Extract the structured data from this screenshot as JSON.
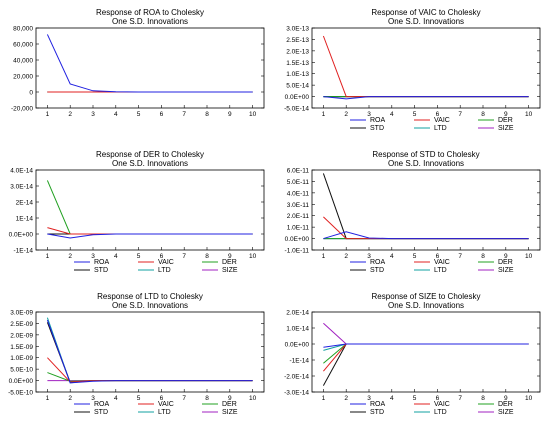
{
  "figure": {
    "background": "#ffffff"
  },
  "series_meta": [
    {
      "name": "ROA",
      "color": "#2020e0"
    },
    {
      "name": "VAIC",
      "color": "#e02020"
    },
    {
      "name": "DER",
      "color": "#20a020"
    },
    {
      "name": "STD",
      "color": "#101010"
    },
    {
      "name": "LTD",
      "color": "#10a0a0"
    },
    {
      "name": "SIZE",
      "color": "#a020c0"
    }
  ],
  "chart_data": [
    {
      "type": "line",
      "title": "Response of ROA to Cholesky",
      "subtitle": "One S.D. Innovations",
      "x": [
        1,
        2,
        3,
        4,
        5,
        6,
        7,
        8,
        9,
        10
      ],
      "ylim": [
        -20000,
        80000
      ],
      "yticks": [
        -20000,
        0,
        20000,
        40000,
        60000,
        80000
      ],
      "ytick_labels": [
        "-20,000",
        "0",
        "20,000",
        "40,000",
        "60,000",
        "80,000"
      ],
      "legend": false,
      "grid": false,
      "series": [
        {
          "name": "ROA",
          "values": [
            72000,
            10000,
            1500,
            300,
            0,
            0,
            0,
            0,
            0,
            0
          ]
        },
        {
          "name": "VAIC",
          "values": [
            0,
            0,
            0,
            0,
            0,
            0,
            0,
            0,
            0,
            0
          ]
        },
        {
          "name": "DER",
          "values": [
            0,
            0,
            0,
            0,
            0,
            0,
            0,
            0,
            0,
            0
          ]
        },
        {
          "name": "STD",
          "values": [
            0,
            0,
            0,
            0,
            0,
            0,
            0,
            0,
            0,
            0
          ]
        },
        {
          "name": "LTD",
          "values": [
            0,
            0,
            0,
            0,
            0,
            0,
            0,
            0,
            0,
            0
          ]
        },
        {
          "name": "SIZE",
          "values": [
            0,
            0,
            0,
            0,
            0,
            0,
            0,
            0,
            0,
            0
          ]
        }
      ]
    },
    {
      "type": "line",
      "title": "Response of VAIC to Cholesky",
      "subtitle": "One S.D. Innovations",
      "x": [
        1,
        2,
        3,
        4,
        5,
        6,
        7,
        8,
        9,
        10
      ],
      "ylim": [
        -5e-14,
        3e-13
      ],
      "yticks": [
        -5e-14,
        0,
        5e-14,
        1e-13,
        1.5e-13,
        2e-13,
        2.5e-13,
        3e-13
      ],
      "ytick_labels": [
        "-5.0E-14",
        "0.0E+00",
        "5.0E-14",
        "1.0E-13",
        "1.5E-13",
        "2.0E-13",
        "2.5E-13",
        "3.0E-13"
      ],
      "legend": true,
      "legend_position": "bottom",
      "grid": false,
      "series": [
        {
          "name": "ROA",
          "values": [
            0,
            -1e-14,
            0,
            0,
            0,
            0,
            0,
            0,
            0,
            0
          ]
        },
        {
          "name": "VAIC",
          "values": [
            2.65e-13,
            0,
            0,
            0,
            0,
            0,
            0,
            0,
            0,
            0
          ]
        },
        {
          "name": "DER",
          "values": [
            0,
            0,
            0,
            0,
            0,
            0,
            0,
            0,
            0,
            0
          ]
        },
        {
          "name": "STD",
          "values": [
            0,
            0,
            0,
            0,
            0,
            0,
            0,
            0,
            0,
            0
          ]
        },
        {
          "name": "LTD",
          "values": [
            0,
            0,
            0,
            0,
            0,
            0,
            0,
            0,
            0,
            0
          ]
        },
        {
          "name": "SIZE",
          "values": [
            0,
            0,
            0,
            0,
            0,
            0,
            0,
            0,
            0,
            0
          ]
        }
      ]
    },
    {
      "type": "line",
      "title": "Response of DER to Cholesky",
      "subtitle": "One S.D. Innovations",
      "x": [
        1,
        2,
        3,
        4,
        5,
        6,
        7,
        8,
        9,
        10
      ],
      "ylim": [
        -1e-14,
        4e-14
      ],
      "yticks": [
        -1e-14,
        0,
        1e-14,
        2e-14,
        3e-14,
        4e-14
      ],
      "ytick_labels": [
        "-1E-14",
        "0.0E+00",
        "1E-14",
        "2E-14",
        "3.0E-14",
        "4.0E-14"
      ],
      "legend": true,
      "legend_position": "bottom",
      "grid": false,
      "series": [
        {
          "name": "ROA",
          "values": [
            0,
            -2.5e-15,
            -5e-16,
            0,
            0,
            0,
            0,
            0,
            0,
            0
          ]
        },
        {
          "name": "VAIC",
          "values": [
            4e-15,
            0,
            0,
            0,
            0,
            0,
            0,
            0,
            0,
            0
          ]
        },
        {
          "name": "DER",
          "values": [
            3.35e-14,
            0,
            0,
            0,
            0,
            0,
            0,
            0,
            0,
            0
          ]
        },
        {
          "name": "STD",
          "values": [
            0,
            0,
            0,
            0,
            0,
            0,
            0,
            0,
            0,
            0
          ]
        },
        {
          "name": "LTD",
          "values": [
            0,
            0,
            0,
            0,
            0,
            0,
            0,
            0,
            0,
            0
          ]
        },
        {
          "name": "SIZE",
          "values": [
            0,
            0,
            0,
            0,
            0,
            0,
            0,
            0,
            0,
            0
          ]
        }
      ]
    },
    {
      "type": "line",
      "title": "Response of STD to Cholesky",
      "subtitle": "One S.D. Innovations",
      "x": [
        1,
        2,
        3,
        4,
        5,
        6,
        7,
        8,
        9,
        10
      ],
      "ylim": [
        -1e-11,
        6e-11
      ],
      "yticks": [
        -1e-11,
        0,
        1e-11,
        2e-11,
        3e-11,
        4e-11,
        5e-11,
        6e-11
      ],
      "ytick_labels": [
        "-1.0E-11",
        "0.0E+00",
        "1.0E-11",
        "2.0E-11",
        "3.0E-11",
        "4.0E-11",
        "5.0E-11",
        "6.0E-11"
      ],
      "legend": true,
      "legend_position": "bottom",
      "grid": false,
      "series": [
        {
          "name": "ROA",
          "values": [
            0,
            6e-12,
            5e-13,
            0,
            0,
            0,
            0,
            0,
            0,
            0
          ]
        },
        {
          "name": "VAIC",
          "values": [
            1.9e-11,
            0,
            0,
            0,
            0,
            0,
            0,
            0,
            0,
            0
          ]
        },
        {
          "name": "DER",
          "values": [
            0,
            0,
            0,
            0,
            0,
            0,
            0,
            0,
            0,
            0
          ]
        },
        {
          "name": "STD",
          "values": [
            5.7e-11,
            0,
            0,
            0,
            0,
            0,
            0,
            0,
            0,
            0
          ]
        },
        {
          "name": "LTD",
          "values": [
            0,
            0,
            0,
            0,
            0,
            0,
            0,
            0,
            0,
            0
          ]
        },
        {
          "name": "SIZE",
          "values": [
            0,
            0,
            0,
            0,
            0,
            0,
            0,
            0,
            0,
            0
          ]
        }
      ]
    },
    {
      "type": "line",
      "title": "Response of LTD to Cholesky",
      "subtitle": "One S.D. Innovations",
      "x": [
        1,
        2,
        3,
        4,
        5,
        6,
        7,
        8,
        9,
        10
      ],
      "ylim": [
        -5e-10,
        3e-09
      ],
      "yticks": [
        -5e-10,
        0,
        5e-10,
        1e-09,
        1.5e-09,
        2e-09,
        2.5e-09,
        3e-09
      ],
      "ytick_labels": [
        "-5.0E-10",
        "0.0E+00",
        "5.0E-10",
        "1.0E-09",
        "1.5E-09",
        "2.0E-09",
        "2.5E-09",
        "3.0E-09"
      ],
      "legend": true,
      "legend_position": "bottom",
      "grid": false,
      "series": [
        {
          "name": "ROA",
          "values": [
            2.65e-09,
            -1e-10,
            -3e-11,
            0,
            0,
            0,
            0,
            0,
            0,
            0
          ]
        },
        {
          "name": "VAIC",
          "values": [
            1e-09,
            -6e-11,
            0,
            0,
            0,
            0,
            0,
            0,
            0,
            0
          ]
        },
        {
          "name": "DER",
          "values": [
            3.5e-10,
            -3e-11,
            0,
            0,
            0,
            0,
            0,
            0,
            0,
            0
          ]
        },
        {
          "name": "STD",
          "values": [
            2.55e-09,
            -8e-11,
            0,
            0,
            0,
            0,
            0,
            0,
            0,
            0
          ]
        },
        {
          "name": "LTD",
          "values": [
            2.75e-09,
            -1e-10,
            0,
            0,
            0,
            0,
            0,
            0,
            0,
            0
          ]
        },
        {
          "name": "SIZE",
          "values": [
            0,
            0,
            0,
            0,
            0,
            0,
            0,
            0,
            0,
            0
          ]
        }
      ]
    },
    {
      "type": "line",
      "title": "Response of SIZE to Cholesky",
      "subtitle": "One S.D. Innovations",
      "x": [
        1,
        2,
        3,
        4,
        5,
        6,
        7,
        8,
        9,
        10
      ],
      "ylim": [
        -3e-14,
        2e-14
      ],
      "yticks": [
        -3e-14,
        -2e-14,
        -1e-14,
        0,
        1e-14,
        2e-14
      ],
      "ytick_labels": [
        "-3.0E-14",
        "-2.0E-14",
        "-1E-14",
        "0.0E+00",
        "1.0E-14",
        "2.0E-14"
      ],
      "legend": true,
      "legend_position": "bottom",
      "grid": false,
      "series": [
        {
          "name": "ROA",
          "values": [
            -2e-15,
            0,
            0,
            0,
            0,
            0,
            0,
            0,
            0,
            0
          ]
        },
        {
          "name": "VAIC",
          "values": [
            -1.7e-14,
            0,
            0,
            0,
            0,
            0,
            0,
            0,
            0,
            0
          ]
        },
        {
          "name": "DER",
          "values": [
            -1.2e-14,
            0,
            0,
            0,
            0,
            0,
            0,
            0,
            0,
            0
          ]
        },
        {
          "name": "STD",
          "values": [
            -2.6e-14,
            0,
            0,
            0,
            0,
            0,
            0,
            0,
            0,
            0
          ]
        },
        {
          "name": "LTD",
          "values": [
            -4e-15,
            0,
            0,
            0,
            0,
            0,
            0,
            0,
            0,
            0
          ]
        },
        {
          "name": "SIZE",
          "values": [
            1.3e-14,
            0,
            0,
            0,
            0,
            0,
            0,
            0,
            0,
            0
          ]
        }
      ]
    }
  ]
}
